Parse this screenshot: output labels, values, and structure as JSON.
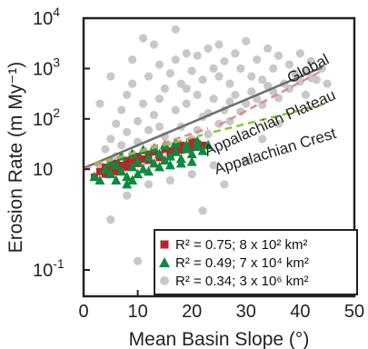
{
  "chart_data": {
    "type": "scatter",
    "xlabel": "Mean Basin Slope (°)",
    "ylabel": "Erosion Rate (m My⁻¹)",
    "xlim": [
      0,
      50
    ],
    "ylim": [
      0.03,
      10000
    ],
    "yscale": "log",
    "x_ticks": [
      0,
      10,
      20,
      30,
      40,
      50
    ],
    "y_ticks": [
      {
        "value": 0.1,
        "base": "10",
        "exp": "-1"
      },
      {
        "value": 10,
        "base": "10",
        "exp": ""
      },
      {
        "value": 100,
        "base": "10",
        "exp": "2"
      },
      {
        "value": 1000,
        "base": "10",
        "exp": "3"
      },
      {
        "value": 10000,
        "base": "10",
        "exp": "4"
      }
    ],
    "fit_lines": [
      {
        "name": "Global",
        "color": "#6e6e6e",
        "dash": false,
        "segments": [
          [
            0,
            10.5,
            44,
            1050
          ]
        ]
      },
      {
        "name": "Appalachian Plateau",
        "color": "#e48a8a",
        "dash": true,
        "segments": [
          [
            0,
            10,
            23,
            65
          ],
          [
            25,
            75,
            44,
            900
          ]
        ]
      },
      {
        "name": "Appalachian Crest",
        "color": "#86c640",
        "dash": true,
        "segments": [
          [
            2,
            13,
            22,
            48
          ],
          [
            24,
            55,
            44,
            190
          ]
        ]
      }
    ],
    "legend": [
      {
        "marker": "square",
        "color": "#b5262b",
        "text": "R² = 0.75; 8 x 10² km²"
      },
      {
        "marker": "triangle",
        "color": "#0e8a3e",
        "text": "R² = 0.49; 7 x 10⁴ km²"
      },
      {
        "marker": "circle",
        "color": "#c8c8c8",
        "text": "R² = 0.34; 3 x 10⁶ km²"
      }
    ],
    "legend_position": "bottom-right",
    "series": [
      {
        "name": "Global",
        "marker": "circle",
        "color": "#c8c8c8",
        "points": [
          [
            3,
            12
          ],
          [
            4,
            25
          ],
          [
            5,
            40
          ],
          [
            6,
            80
          ],
          [
            6,
            18
          ],
          [
            7,
            150
          ],
          [
            7,
            30
          ],
          [
            8,
            300
          ],
          [
            8,
            55
          ],
          [
            9,
            20
          ],
          [
            9,
            500
          ],
          [
            10,
            90
          ],
          [
            10,
            35
          ],
          [
            11,
            200
          ],
          [
            11,
            14
          ],
          [
            12,
            700
          ],
          [
            12,
            60
          ],
          [
            13,
            120
          ],
          [
            13,
            25
          ],
          [
            14,
            1200
          ],
          [
            14,
            250
          ],
          [
            15,
            45
          ],
          [
            15,
            400
          ],
          [
            16,
            800
          ],
          [
            16,
            30
          ],
          [
            17,
            150
          ],
          [
            17,
            1500
          ],
          [
            18,
            70
          ],
          [
            18,
            500
          ],
          [
            19,
            2000
          ],
          [
            19,
            200
          ],
          [
            20,
            40
          ],
          [
            20,
            900
          ],
          [
            21,
            300
          ],
          [
            21,
            1800
          ],
          [
            22,
            110
          ],
          [
            22,
            600
          ],
          [
            23,
            2500
          ],
          [
            23,
            50
          ],
          [
            24,
            1000
          ],
          [
            24,
            250
          ],
          [
            25,
            700
          ],
          [
            25,
            3000
          ],
          [
            26,
            150
          ],
          [
            26,
            1400
          ],
          [
            27,
            500
          ],
          [
            27,
            90
          ],
          [
            28,
            2000
          ],
          [
            28,
            300
          ],
          [
            29,
            1000
          ],
          [
            30,
            200
          ],
          [
            30,
            3500
          ],
          [
            31,
            700
          ],
          [
            32,
            1500
          ],
          [
            32,
            250
          ],
          [
            33,
            600
          ],
          [
            34,
            2500
          ],
          [
            35,
            1000
          ],
          [
            35,
            350
          ],
          [
            36,
            1800
          ],
          [
            37,
            500
          ],
          [
            38,
            1200
          ],
          [
            39,
            800
          ],
          [
            40,
            2000
          ],
          [
            41,
            900
          ],
          [
            42,
            1400
          ],
          [
            43,
            600
          ],
          [
            5,
            1
          ],
          [
            8,
            3
          ],
          [
            12,
            5
          ],
          [
            16,
            6
          ],
          [
            20,
            8
          ],
          [
            24,
            12
          ],
          [
            30,
            15
          ],
          [
            10,
            0.15
          ],
          [
            15,
            0.4
          ],
          [
            22,
            1.5
          ],
          [
            26,
            5
          ],
          [
            33,
            40
          ],
          [
            36,
            80
          ],
          [
            3,
            200
          ],
          [
            5,
            700
          ],
          [
            9,
            1500
          ],
          [
            13,
            3000
          ],
          [
            11,
            4000
          ],
          [
            17,
            6000
          ],
          [
            19,
            400
          ],
          [
            14,
            70
          ],
          [
            21,
            60
          ],
          [
            23,
            130
          ],
          [
            25,
            80
          ],
          [
            27,
            220
          ],
          [
            29,
            140
          ],
          [
            31,
            350
          ],
          [
            33,
            190
          ],
          [
            34,
            450
          ],
          [
            36,
            260
          ],
          [
            38,
            400
          ],
          [
            40,
            550
          ],
          [
            41,
            300
          ],
          [
            42,
            650
          ],
          [
            44,
            1000
          ],
          [
            45,
            500
          ]
        ]
      },
      {
        "name": "Appalachian Plateau",
        "marker": "square",
        "color": "#b5262b",
        "points": [
          [
            2,
            7
          ],
          [
            3,
            9
          ],
          [
            4,
            11
          ],
          [
            5,
            10
          ],
          [
            6,
            13
          ],
          [
            7,
            12
          ],
          [
            8,
            15
          ],
          [
            9,
            14
          ],
          [
            10,
            18
          ],
          [
            11,
            16
          ],
          [
            12,
            20
          ],
          [
            13,
            22
          ],
          [
            14,
            19
          ],
          [
            15,
            25
          ],
          [
            16,
            23
          ],
          [
            17,
            28
          ],
          [
            18,
            30
          ],
          [
            19,
            26
          ],
          [
            20,
            35
          ],
          [
            21,
            32
          ],
          [
            4,
            8
          ],
          [
            6,
            9
          ],
          [
            8,
            11
          ],
          [
            10,
            13
          ],
          [
            12,
            15
          ],
          [
            14,
            17
          ],
          [
            16,
            20
          ],
          [
            18,
            24
          ],
          [
            20,
            27
          ],
          [
            22,
            30
          ]
        ]
      },
      {
        "name": "Appalachian Crest",
        "marker": "triangle",
        "color": "#0e8a3e",
        "points": [
          [
            2,
            7
          ],
          [
            3,
            6
          ],
          [
            4,
            10
          ],
          [
            5,
            8
          ],
          [
            6,
            12
          ],
          [
            7,
            9
          ],
          [
            8,
            5
          ],
          [
            9,
            11
          ],
          [
            10,
            14
          ],
          [
            11,
            10
          ],
          [
            12,
            17
          ],
          [
            13,
            13
          ],
          [
            14,
            20
          ],
          [
            15,
            15
          ],
          [
            16,
            18
          ],
          [
            17,
            22
          ],
          [
            18,
            16
          ],
          [
            19,
            25
          ],
          [
            20,
            20
          ],
          [
            21,
            28
          ],
          [
            22,
            23
          ],
          [
            23,
            30
          ],
          [
            5,
            14
          ],
          [
            7,
            18
          ],
          [
            9,
            20
          ],
          [
            11,
            24
          ],
          [
            13,
            26
          ],
          [
            15,
            30
          ],
          [
            17,
            33
          ],
          [
            19,
            30
          ],
          [
            21,
            36
          ],
          [
            8,
            7
          ],
          [
            10,
            8
          ],
          [
            12,
            9
          ],
          [
            14,
            11
          ],
          [
            16,
            12
          ],
          [
            18,
            13
          ],
          [
            20,
            14
          ],
          [
            6,
            6
          ],
          [
            9,
            6
          ]
        ]
      }
    ],
    "grid": false,
    "title": ""
  }
}
